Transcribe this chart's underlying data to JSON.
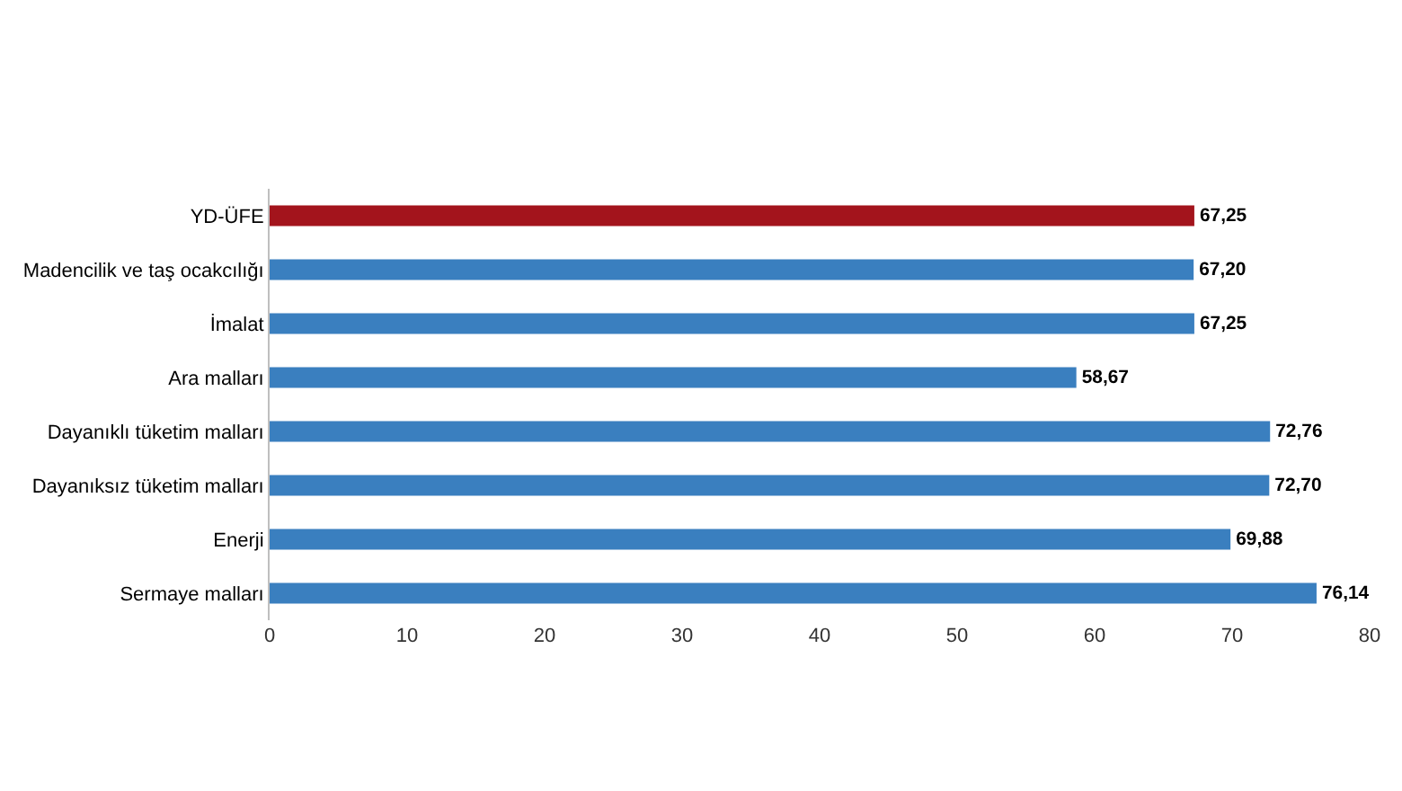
{
  "chart_data": {
    "type": "bar",
    "orientation": "horizontal",
    "categories": [
      "YD-ÜFE",
      "Madencilik ve taş ocakcılığı",
      "İmalat",
      "Ara malları",
      "Dayanıklı tüketim malları",
      "Dayanıksız tüketim malları",
      "Enerji",
      "Sermaye malları"
    ],
    "values": [
      67.25,
      67.2,
      67.25,
      58.67,
      72.76,
      72.7,
      69.88,
      76.14
    ],
    "colors": [
      "#a3141c",
      "#3a7fbf",
      "#3a7fbf",
      "#3a7fbf",
      "#3a7fbf",
      "#3a7fbf",
      "#3a7fbf",
      "#3a7fbf"
    ],
    "value_labels": [
      "67,25",
      "67,20",
      "67,25",
      "58,67",
      "72,76",
      "72,70",
      "69,88",
      "76,14"
    ],
    "xlim": [
      0,
      80
    ],
    "xticks": [
      0,
      10,
      20,
      30,
      40,
      50,
      60,
      70,
      80
    ]
  }
}
